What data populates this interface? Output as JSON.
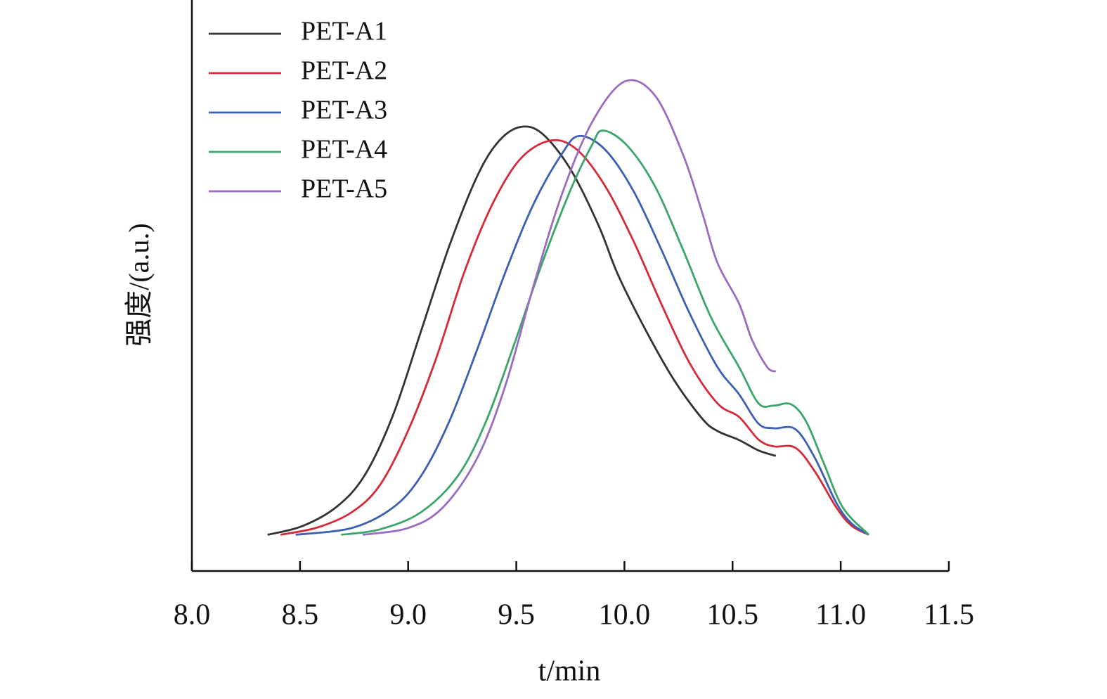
{
  "chart_data": {
    "type": "line",
    "xlabel": "t/min",
    "ylabel": "强度/(a.u.)",
    "xlim": [
      8.0,
      11.5
    ],
    "xticks": [
      {
        "value": 8.0,
        "label": "8.0"
      },
      8.5,
      {
        "value": 9.0,
        "label": "9.0"
      },
      9.5,
      {
        "value": 10.0,
        "label": "10.0"
      },
      10.5,
      {
        "value": 11.0,
        "label": "11.0"
      },
      11.5
    ],
    "ylim": [
      -8,
      118
    ],
    "legend": "upper left",
    "series": [
      {
        "name": "PET-A1",
        "color": "#333333",
        "x": [
          8.35,
          8.51,
          8.67,
          8.8,
          8.93,
          9.06,
          9.19,
          9.32,
          9.42,
          9.52,
          9.62,
          9.75,
          9.88,
          9.97,
          10.1,
          10.23,
          10.36,
          10.43,
          10.53,
          10.62,
          10.7
        ],
        "values": [
          0,
          1.9,
          6.2,
          13.2,
          26.4,
          45.0,
          63.7,
          79.2,
          86.9,
          90.0,
          88.5,
          80.7,
          68.3,
          57.4,
          45.0,
          34.1,
          25.6,
          22.9,
          20.9,
          18.6,
          17.4
        ]
      },
      {
        "name": "PET-A2",
        "color": "#d62a3a",
        "x": [
          8.41,
          8.58,
          8.74,
          8.87,
          9.0,
          9.13,
          9.26,
          9.39,
          9.52,
          9.66,
          9.78,
          9.91,
          10.04,
          10.17,
          10.3,
          10.43,
          10.53,
          10.62,
          10.69,
          10.79,
          10.88,
          10.98,
          11.05,
          11.13
        ],
        "values": [
          0,
          1.6,
          5,
          11,
          23,
          39,
          58,
          73,
          83,
          87,
          85,
          77,
          65,
          51,
          38,
          29,
          26,
          21,
          19.5,
          19.2,
          14,
          6,
          2,
          0
        ]
      },
      {
        "name": "PET-A3",
        "color": "#3a5fb5",
        "x": [
          8.48,
          8.74,
          8.93,
          9.06,
          9.19,
          9.32,
          9.45,
          9.58,
          9.71,
          9.79,
          9.91,
          10.04,
          10.17,
          10.3,
          10.43,
          10.53,
          10.62,
          10.69,
          10.79,
          10.88,
          10.98,
          11.05,
          11.13
        ],
        "values": [
          0,
          1.5,
          6,
          13,
          25,
          41,
          58,
          73,
          84,
          88,
          85,
          76,
          63,
          49,
          37,
          31,
          24.5,
          23.5,
          23.3,
          17,
          7,
          2.5,
          0
        ]
      },
      {
        "name": "PET-A4",
        "color": "#3aa66a",
        "x": [
          8.69,
          8.87,
          9.06,
          9.23,
          9.36,
          9.49,
          9.62,
          9.75,
          9.85,
          9.9,
          10.01,
          10.14,
          10.27,
          10.4,
          10.53,
          10.62,
          10.69,
          10.77,
          10.84,
          10.92,
          11.01,
          11.13
        ],
        "values": [
          0,
          1.2,
          5,
          13,
          25,
          42,
          60,
          76,
          86,
          89.2,
          86,
          77,
          63,
          48,
          37,
          29,
          28.5,
          28.8,
          25,
          16,
          6,
          0
        ]
      },
      {
        "name": "PET-A5",
        "color": "#9a6bbf",
        "x": [
          8.79,
          9.0,
          9.16,
          9.32,
          9.45,
          9.58,
          9.71,
          9.85,
          10.0,
          10.14,
          10.27,
          10.36,
          10.43,
          10.53,
          10.59,
          10.66,
          10.7
        ],
        "values": [
          0,
          1.5,
          6,
          17,
          33,
          55,
          75,
          91,
          100,
          97,
          84,
          71,
          60,
          51,
          43,
          37,
          36
        ]
      }
    ]
  }
}
